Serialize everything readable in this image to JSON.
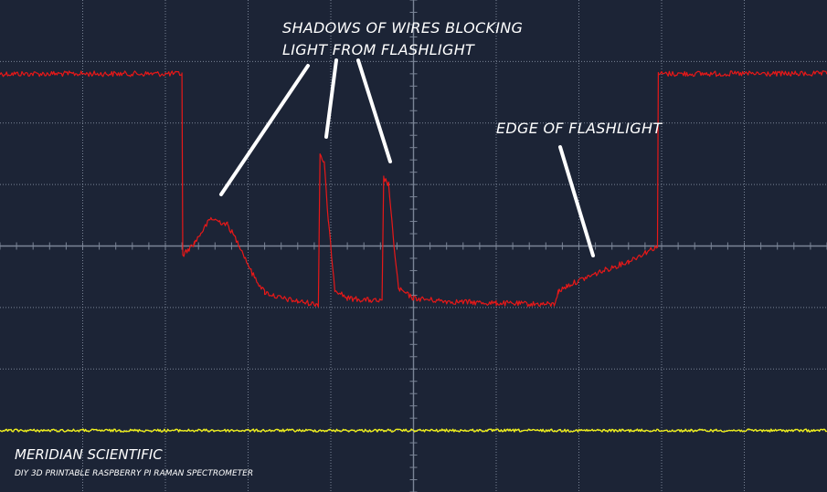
{
  "chart_data": {
    "type": "line",
    "title": "",
    "xlabel": "",
    "ylabel": "",
    "grid": true,
    "x_range": [
      0,
      10
    ],
    "y_range": [
      -4,
      4
    ],
    "grid_divisions": {
      "x": 10,
      "y": 8
    },
    "series": [
      {
        "color": "#e81818",
        "points": [
          [
            0.0,
            2.8
          ],
          [
            2.2,
            2.8
          ],
          [
            2.21,
            -0.15
          ],
          [
            2.35,
            0.05
          ],
          [
            2.55,
            0.45
          ],
          [
            2.75,
            0.35
          ],
          [
            2.9,
            0.0
          ],
          [
            3.05,
            -0.45
          ],
          [
            3.2,
            -0.75
          ],
          [
            3.4,
            -0.85
          ],
          [
            3.6,
            -0.9
          ],
          [
            3.85,
            -0.95
          ],
          [
            3.87,
            1.5
          ],
          [
            3.92,
            1.35
          ],
          [
            3.97,
            0.4
          ],
          [
            4.05,
            -0.7
          ],
          [
            4.2,
            -0.85
          ],
          [
            4.62,
            -0.9
          ],
          [
            4.64,
            1.1
          ],
          [
            4.7,
            1.0
          ],
          [
            4.75,
            0.2
          ],
          [
            4.82,
            -0.7
          ],
          [
            5.0,
            -0.85
          ],
          [
            5.4,
            -0.9
          ],
          [
            6.0,
            -0.93
          ],
          [
            6.7,
            -0.95
          ],
          [
            6.75,
            -0.75
          ],
          [
            6.85,
            -0.65
          ],
          [
            7.2,
            -0.45
          ],
          [
            7.6,
            -0.25
          ],
          [
            7.95,
            0.0
          ],
          [
            7.96,
            2.8
          ],
          [
            10.0,
            2.8
          ]
        ]
      },
      {
        "color": "#eeee1c",
        "points": [
          [
            0.0,
            -3.0
          ],
          [
            10.0,
            -3.0
          ]
        ]
      }
    ],
    "annotations": [
      {
        "lines": [
          "SHADOWS OF WIRES BLOCKING",
          "LIGHT FROM FLASHLIGHT"
        ]
      },
      {
        "lines": [
          "EDGE OF FLASHLIGHT"
        ]
      }
    ]
  },
  "branding": {
    "company": "MERIDIAN SCIENTIFIC",
    "tagline": "DIY 3D PRINTABLE RASPBERRY PI RAMAN SPECTROMETER"
  },
  "colors": {
    "background": "#1c2436",
    "grid": "#7a8496",
    "trace_primary": "#e81818",
    "trace_secondary": "#eeee1c",
    "annotation": "#ffffff"
  }
}
